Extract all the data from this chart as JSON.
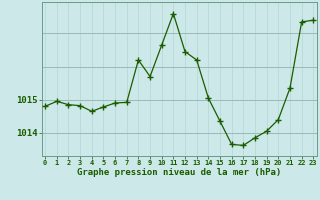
{
  "hours": [
    0,
    1,
    2,
    3,
    4,
    5,
    6,
    7,
    8,
    9,
    10,
    11,
    12,
    13,
    14,
    15,
    16,
    17,
    18,
    19,
    20,
    21,
    22,
    23
  ],
  "pressure": [
    1014.8,
    1014.95,
    1014.85,
    1014.82,
    1014.65,
    1014.78,
    1014.9,
    1014.92,
    1016.2,
    1015.7,
    1016.65,
    1017.6,
    1016.45,
    1016.2,
    1015.05,
    1014.35,
    1013.65,
    1013.62,
    1013.85,
    1014.05,
    1014.4,
    1015.35,
    1017.35,
    1017.4
  ],
  "bg_color": "#cce8e8",
  "line_color": "#1a5c00",
  "marker_color": "#1a5c00",
  "grid_color_v": "#b8d8d8",
  "grid_color_h": "#9ababa",
  "axis_label_color": "#1a5c00",
  "tick_color": "#1a5c00",
  "border_color": "#6a9a8a",
  "title": "Graphe pression niveau de la mer (hPa)",
  "yticks": [
    1014,
    1015
  ],
  "ylim": [
    1013.3,
    1017.95
  ],
  "xlim": [
    -0.3,
    23.3
  ],
  "xtick_fontsize": 5.0,
  "ytick_fontsize": 6.5
}
